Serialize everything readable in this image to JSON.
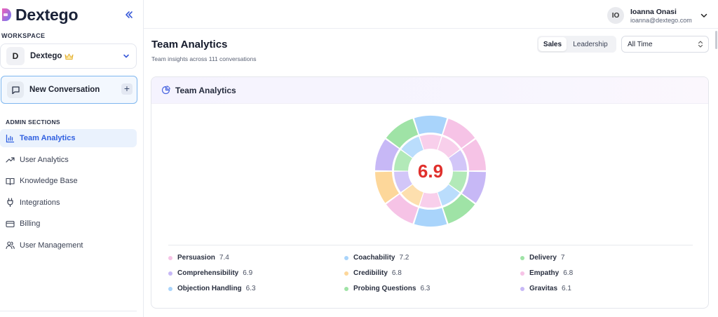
{
  "brand": {
    "name": "Dextego"
  },
  "sidebar": {
    "workspace_label": "WORKSPACE",
    "workspace": {
      "initial": "D",
      "name": "Dextego"
    },
    "new_conversation_label": "New Conversation",
    "admin_label": "ADMIN SECTIONS",
    "items": [
      {
        "label": "Team Analytics",
        "icon": "bar-chart-icon",
        "active": true
      },
      {
        "label": "User Analytics",
        "icon": "trending-up-icon",
        "active": false
      },
      {
        "label": "Knowledge Base",
        "icon": "book-icon",
        "active": false
      },
      {
        "label": "Integrations",
        "icon": "plug-icon",
        "active": false
      },
      {
        "label": "Billing",
        "icon": "credit-card-icon",
        "active": false
      },
      {
        "label": "User Management",
        "icon": "users-icon",
        "active": false
      }
    ]
  },
  "user": {
    "initials": "IO",
    "name": "Ioanna Onasi",
    "email": "ioanna@dextego.com"
  },
  "header": {
    "title": "Team Analytics",
    "subtitle": "Team insights across 111 conversations",
    "segments": [
      "Sales",
      "Leadership"
    ],
    "active_segment": "Sales",
    "range": "All Time"
  },
  "card": {
    "title": "Team Analytics"
  },
  "chart_data": {
    "type": "pie",
    "subtype": "two-ring donut",
    "center_value": "6.9",
    "center_color": "#e0302c",
    "categories": [
      "Persuasion",
      "Coachability",
      "Delivery",
      "Comprehensibility",
      "Credibility",
      "Empathy",
      "Objection Handling",
      "Probing Questions",
      "Gravitas"
    ],
    "values": [
      7.4,
      7.2,
      7.0,
      6.9,
      6.8,
      6.8,
      6.3,
      6.3,
      6.1
    ],
    "colors": [
      "#f6c3e6",
      "#a9d4fb",
      "#9fe3a6",
      "#c7b8f6",
      "#fdd79a",
      "#f6c3e6",
      "#a9d4fb",
      "#9fe3a6",
      "#c7b8f6"
    ],
    "ring_order": [
      1,
      0,
      5,
      8,
      7,
      6,
      0,
      4,
      3,
      2
    ],
    "ring_colors": [
      "#a9d4fb",
      "#f6c3e6",
      "#f6c3e6",
      "#c7b8f6",
      "#9fe3a6",
      "#a9d4fb",
      "#f6c3e6",
      "#fdd79a",
      "#c7b8f6",
      "#9fe3a6"
    ]
  }
}
